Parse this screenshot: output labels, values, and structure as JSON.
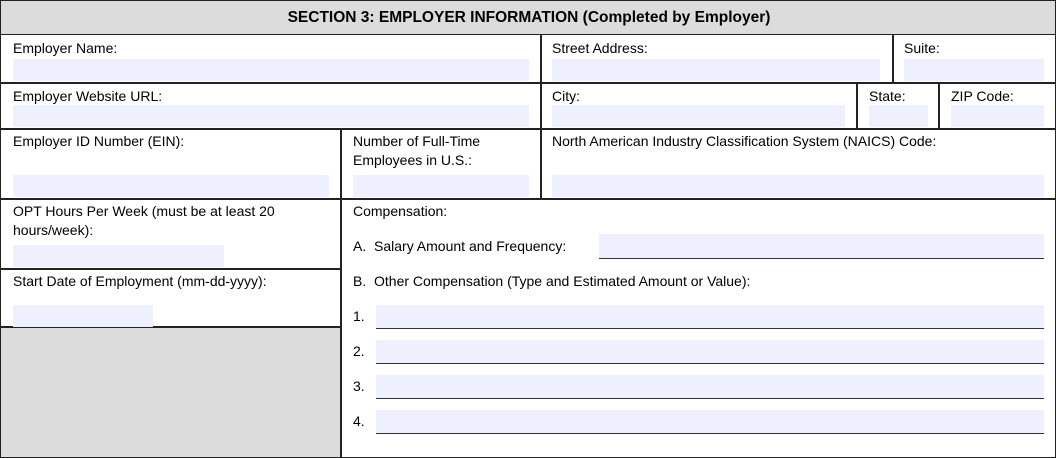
{
  "section_title": "SECTION 3: EMPLOYER INFORMATION (Completed by Employer)",
  "fields": {
    "employer_name": {
      "label": "Employer Name:",
      "value": ""
    },
    "street_address": {
      "label": "Street Address:",
      "value": ""
    },
    "suite": {
      "label": "Suite:",
      "value": ""
    },
    "website_url": {
      "label": "Employer Website URL:",
      "value": ""
    },
    "city": {
      "label": "City:",
      "value": ""
    },
    "state": {
      "label": "State:",
      "value": ""
    },
    "zip": {
      "label": "ZIP Code:",
      "value": ""
    },
    "ein": {
      "label": "Employer ID Number (EIN):",
      "value": ""
    },
    "num_employees": {
      "label_line1": "Number of Full-Time",
      "label_line2": "Employees in U.S.:",
      "value": ""
    },
    "naics": {
      "label": "North American Industry Classification System (NAICS) Code:",
      "value": ""
    },
    "opt_hours": {
      "label_line1": "OPT Hours Per Week (must be at least 20",
      "label_line2": "hours/week):",
      "value": ""
    },
    "start_date": {
      "label": "Start Date of Employment (mm-dd-yyyy):",
      "value": ""
    }
  },
  "compensation": {
    "label": "Compensation:",
    "salary": {
      "label": "A.  Salary Amount and Frequency:",
      "value": ""
    },
    "other_label": "B.  Other Compensation (Type and Estimated Amount or Value):",
    "other_items": [
      {
        "num": "1.",
        "value": ""
      },
      {
        "num": "2.",
        "value": ""
      },
      {
        "num": "3.",
        "value": ""
      },
      {
        "num": "4.",
        "value": ""
      }
    ]
  },
  "colors": {
    "field_bg": "#eef1fd",
    "header_bg": "#dcdcdc",
    "gray_block": "#dcdcdc"
  }
}
